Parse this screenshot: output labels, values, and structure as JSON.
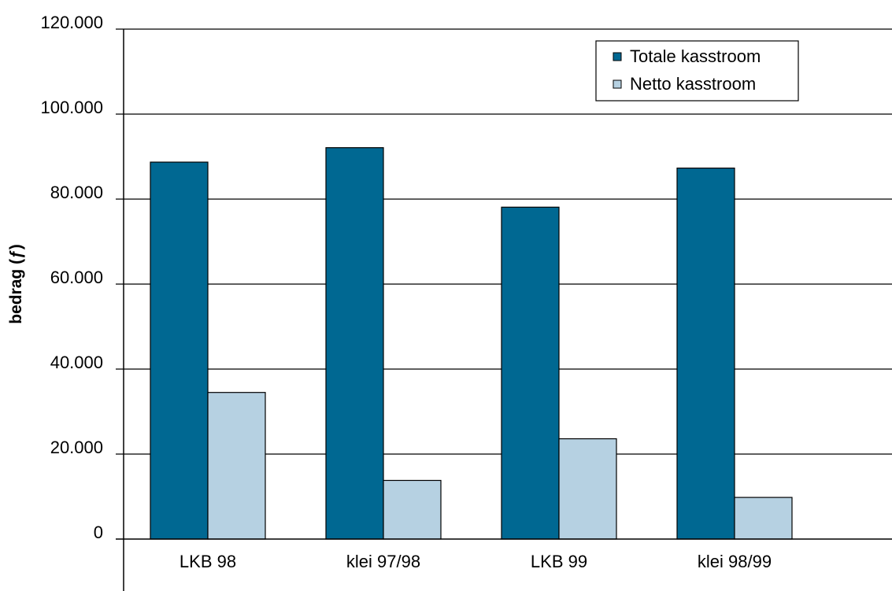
{
  "chart_data": {
    "type": "bar",
    "title": "",
    "xlabel": "",
    "ylabel": "bedrag (ƒ)",
    "ylim": [
      0,
      120000
    ],
    "yticks": [
      {
        "value": 0,
        "label": "0"
      },
      {
        "value": 20000,
        "label": "20.000"
      },
      {
        "value": 40000,
        "label": "40.000"
      },
      {
        "value": 60000,
        "label": "60.000"
      },
      {
        "value": 80000,
        "label": "80.000"
      },
      {
        "value": 100000,
        "label": "100.000"
      },
      {
        "value": 120000,
        "label": "120.000"
      }
    ],
    "grid": true,
    "legend_position": "top-right",
    "categories": [
      "LKB 98",
      "klei 97/98",
      "LKB 99",
      "klei 98/99"
    ],
    "series": [
      {
        "name": "Totale kasstroom",
        "color": "#006892",
        "values": [
          88700,
          92100,
          78100,
          87300
        ]
      },
      {
        "name": "Netto kasstroom",
        "color": "#b6d1e2",
        "values": [
          34500,
          13800,
          23600,
          9800
        ]
      }
    ]
  }
}
